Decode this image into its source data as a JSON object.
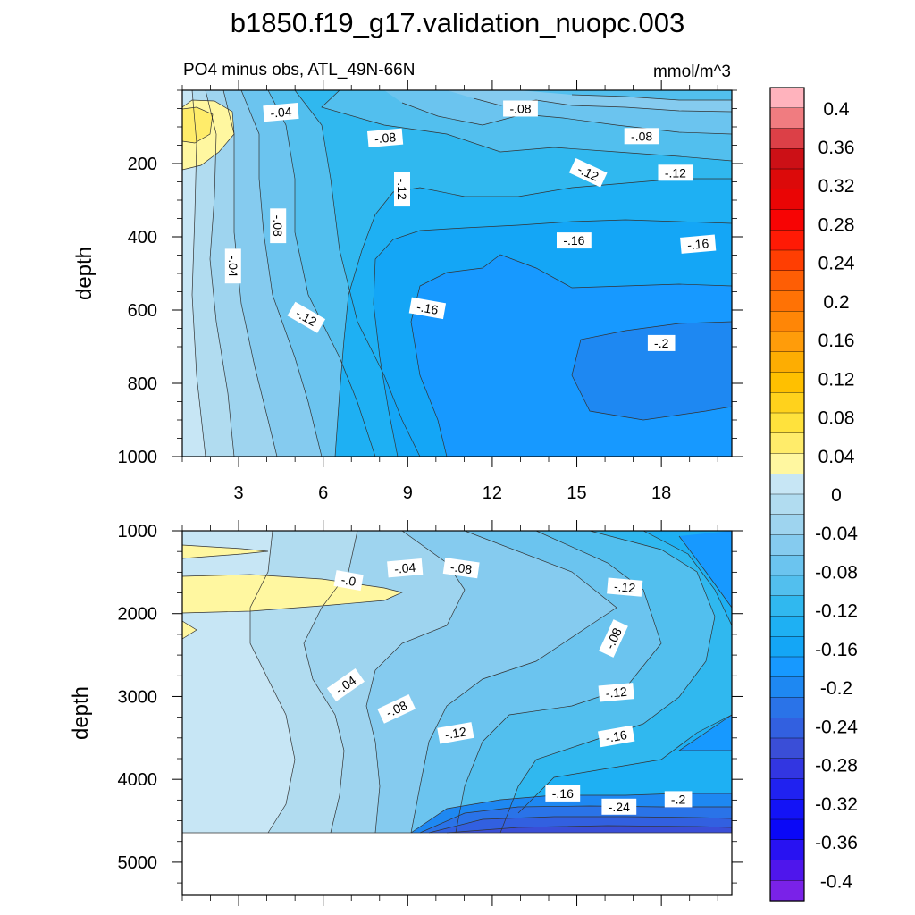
{
  "chart_data": [
    {
      "type": "heatmap",
      "panel": "upper",
      "title": "b1850.f19_g17.validation_nuopc.003",
      "subtitle_left": "PO4 minus obs, ATL_49N-66N",
      "subtitle_right": "mmol/m^3",
      "xlabel": "",
      "ylabel": "depth",
      "xlim": [
        1,
        20.5
      ],
      "ylim": [
        1000,
        0
      ],
      "x_ticks": [
        3,
        6,
        9,
        12,
        15,
        18
      ],
      "x_tick_labels": [
        "3",
        "6",
        "9",
        "12",
        "15",
        "18"
      ],
      "y_ticks": [
        200,
        400,
        600,
        800,
        1000
      ],
      "y_tick_labels": [
        "200",
        "400",
        "600",
        "800",
        "1000"
      ],
      "contour_labels": [
        {
          "text": "-.04",
          "x": 4.5,
          "y": 60,
          "angle": -5
        },
        {
          "text": "-.08",
          "x": 13.0,
          "y": 50,
          "angle": 0
        },
        {
          "text": "-.08",
          "x": 8.2,
          "y": 130,
          "angle": -5
        },
        {
          "text": "-.08",
          "x": 17.3,
          "y": 125,
          "angle": 0
        },
        {
          "text": "-.12",
          "x": 15.4,
          "y": 225,
          "angle": 25
        },
        {
          "text": "-.12",
          "x": 18.5,
          "y": 225,
          "angle": 0
        },
        {
          "text": "-.12",
          "x": 8.8,
          "y": 270,
          "angle": 90
        },
        {
          "text": "-.08",
          "x": 4.4,
          "y": 370,
          "angle": 90
        },
        {
          "text": "-.04",
          "x": 2.8,
          "y": 480,
          "angle": 90
        },
        {
          "text": "-.16",
          "x": 14.9,
          "y": 410,
          "angle": 0
        },
        {
          "text": "-.16",
          "x": 19.3,
          "y": 420,
          "angle": -5
        },
        {
          "text": "-.12",
          "x": 5.4,
          "y": 620,
          "angle": 30
        },
        {
          "text": "-.16",
          "x": 9.7,
          "y": 595,
          "angle": 10
        },
        {
          "text": "-.2",
          "x": 18.0,
          "y": 690,
          "angle": 0
        }
      ]
    },
    {
      "type": "heatmap",
      "panel": "lower",
      "xlabel": "",
      "ylabel": "depth",
      "xlim": [
        1,
        20.5
      ],
      "ylim": [
        5400,
        1000
      ],
      "no_data_below": 4620,
      "x_ticks": [
        3,
        6,
        9,
        12,
        15,
        18
      ],
      "y_ticks": [
        1000,
        2000,
        3000,
        4000,
        5000
      ],
      "y_tick_labels": [
        "1000",
        "2000",
        "3000",
        "4000",
        "5000"
      ],
      "contour_labels": [
        {
          "text": "-.0",
          "x": 6.9,
          "y": 1600,
          "angle": 10
        },
        {
          "text": "-.04",
          "x": 8.9,
          "y": 1450,
          "angle": -5
        },
        {
          "text": "-.08",
          "x": 10.9,
          "y": 1450,
          "angle": 8
        },
        {
          "text": "-.12",
          "x": 16.7,
          "y": 1680,
          "angle": 5
        },
        {
          "text": "-.08",
          "x": 16.3,
          "y": 2300,
          "angle": -65
        },
        {
          "text": "-.04",
          "x": 6.8,
          "y": 2860,
          "angle": -35
        },
        {
          "text": "-.08",
          "x": 8.6,
          "y": 3150,
          "angle": -25
        },
        {
          "text": "-.12",
          "x": 16.4,
          "y": 2950,
          "angle": -5
        },
        {
          "text": "-.12",
          "x": 10.7,
          "y": 3440,
          "angle": -10
        },
        {
          "text": "-.16",
          "x": 16.4,
          "y": 3480,
          "angle": -10
        },
        {
          "text": "-.16",
          "x": 14.5,
          "y": 4170,
          "angle": 0
        },
        {
          "text": "-.24",
          "x": 16.5,
          "y": 4330,
          "angle": 0
        },
        {
          "text": "-.2",
          "x": 18.6,
          "y": 4240,
          "angle": 0
        }
      ]
    }
  ],
  "colorbar": {
    "levels": [
      0.4,
      0.36,
      0.32,
      0.28,
      0.24,
      0.2,
      0.16,
      0.12,
      0.08,
      0.04,
      0,
      -0.04,
      -0.08,
      -0.12,
      -0.16,
      -0.2,
      -0.24,
      -0.28,
      -0.32,
      -0.36,
      -0.4
    ],
    "labels": [
      "0.4",
      "0.36",
      "0.32",
      "0.28",
      "0.24",
      "0.2",
      "0.16",
      "0.12",
      "0.08",
      "0.04",
      "0",
      "-0.04",
      "-0.08",
      "-0.12",
      "-0.16",
      "-0.2",
      "-0.24",
      "-0.28",
      "-0.32",
      "-0.36",
      "-0.4"
    ],
    "colors_top_to_bottom": [
      "#ffb3bd",
      "#f07c80",
      "#dc4047",
      "#cc1016",
      "#dc0a0a",
      "#ea0505",
      "#f70404",
      "#ff1a05",
      "#ff3e02",
      "#fe5e05",
      "#ff7205",
      "#ff8606",
      "#ff9c0a",
      "#fdad02",
      "#ffc000",
      "#ffd21c",
      "#ffe23c",
      "#ffec6a",
      "#fff7a0",
      "#c7e6f5",
      "#b1dcf0",
      "#9ed4ef",
      "#85cbef",
      "#6bc4ef",
      "#52bfee",
      "#30b8ef",
      "#1eb0f3",
      "#14a6f6",
      "#1799ff",
      "#1e88f2",
      "#2a73e8",
      "#3260e0",
      "#3a4ed7",
      "#3236e1",
      "#2022f0",
      "#1313f6",
      "#0a08f7",
      "#2812f2",
      "#4f16ec",
      "#7a22e8"
    ]
  }
}
